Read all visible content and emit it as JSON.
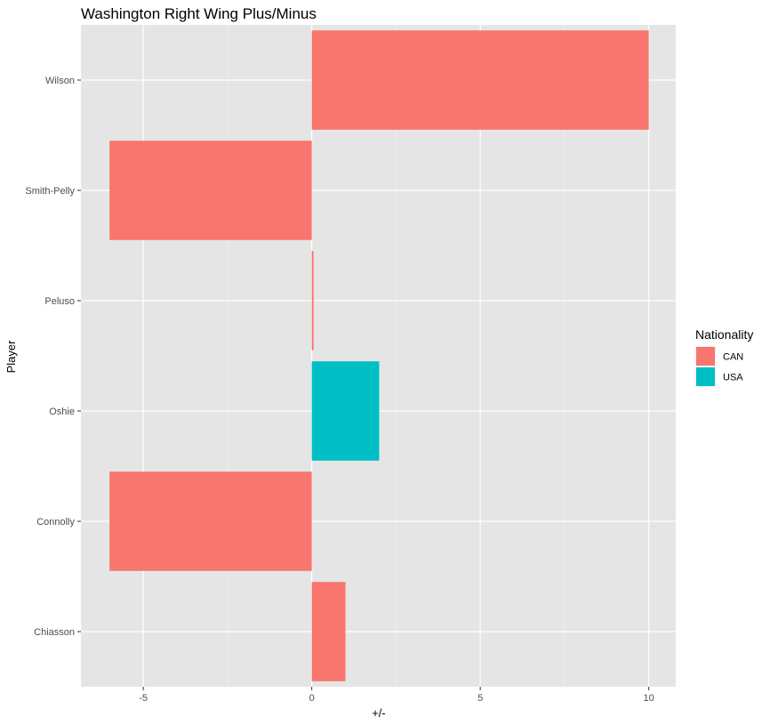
{
  "chart_data": {
    "type": "bar",
    "orientation": "horizontal",
    "title": "Washington Right Wing Plus/Minus",
    "xlabel": "+/-",
    "ylabel": "Player",
    "categories": [
      "Wilson",
      "Smith-Pelly",
      "Peluso",
      "Oshie",
      "Connolly",
      "Chiasson"
    ],
    "values": [
      10,
      -6,
      0,
      2,
      -6,
      1
    ],
    "groups": [
      "CAN",
      "CAN",
      "CAN",
      "USA",
      "CAN",
      "CAN"
    ],
    "xlim": [
      -6.85,
      10.8
    ],
    "x_ticks": [
      -5,
      0,
      5,
      10
    ],
    "x_tick_labels": [
      "-5",
      "0",
      "5",
      "10"
    ],
    "grid": true,
    "background": "#e5e5e5",
    "legend": {
      "title": "Nationality",
      "position": "right",
      "entries": [
        {
          "label": "CAN",
          "color": "#f8766d"
        },
        {
          "label": "USA",
          "color": "#00bfc4"
        }
      ]
    }
  }
}
